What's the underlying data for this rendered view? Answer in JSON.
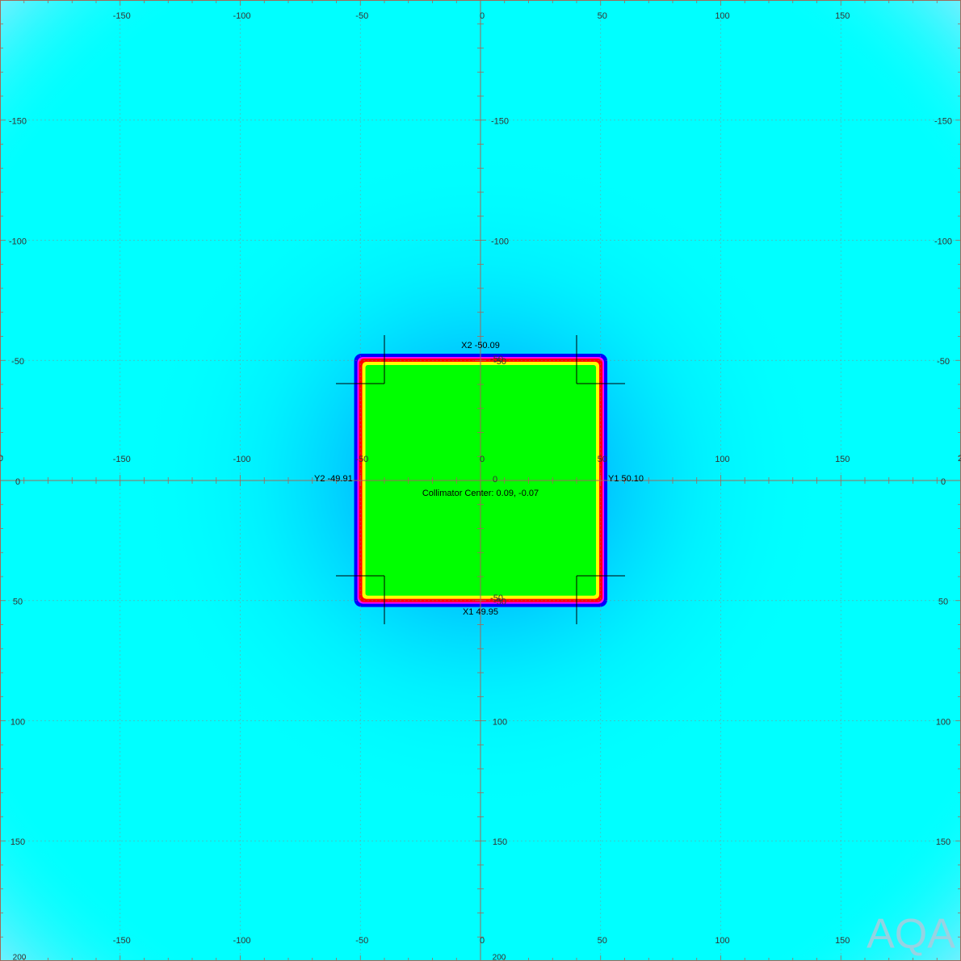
{
  "image": {
    "kind": "radiation field dose image (collimator jaw analysis)",
    "colors": {
      "background": "#00ffff",
      "halo": "#0099ff",
      "penumbra_outer": "#0000ff",
      "penumbra_mid": "#ff00ff",
      "penumbra_inner": "#ff0000",
      "edge": "#ffff00",
      "field": "#00ff00",
      "grid": "#888888",
      "axis": "#a06a5a",
      "marker": "#000000",
      "watermark": "#aaccdd"
    },
    "grid_mm": {
      "min": -200,
      "max": 200,
      "labeled_step": 50,
      "minor_tick_step": 10
    },
    "tick_labels": {
      "top_x": [
        "-150",
        "-100",
        "-50",
        "0",
        "50",
        "100",
        "150"
      ],
      "middle_x": [
        "-150",
        "-100",
        "-50",
        "0",
        "50",
        "100",
        "150",
        "0"
      ],
      "bottom_x": [
        "-150",
        "-100",
        "-50",
        "0",
        "50",
        "100",
        "150"
      ],
      "left_y": [
        "-150",
        "-100",
        "-50",
        "0",
        "50",
        "100",
        "150"
      ],
      "right_y": [
        "-150",
        "-100",
        "-50",
        "0",
        "50",
        "100",
        "150"
      ],
      "center_y": [
        "-150",
        "-100",
        "-50",
        "-50",
        "100",
        "150"
      ],
      "corner": [
        "200",
        "20",
        "20",
        "200"
      ]
    },
    "field_mm": {
      "x_min": -49.91,
      "x_max": 50.1,
      "y_min": -50.09,
      "y_max": 49.95
    },
    "jaw_labels": {
      "x2": "X2 -50.09",
      "x1": "X1 49.95",
      "y2": "Y2 -49.91",
      "y1": "Y1 50.10"
    },
    "collimator_center": "Collimator Center: 0.09, -0.07",
    "watermark": "AQA"
  }
}
